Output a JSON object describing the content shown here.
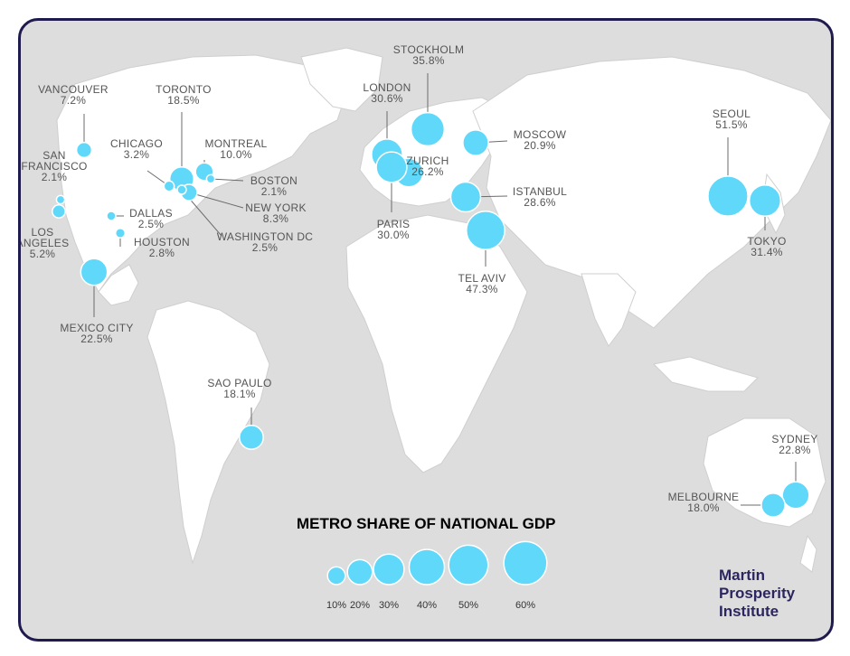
{
  "legend": {
    "title": "METRO SHARE OF NATIONAL GDP",
    "items": [
      {
        "label": "10%",
        "value": 10
      },
      {
        "label": "20%",
        "value": 20
      },
      {
        "label": "30%",
        "value": 30
      },
      {
        "label": "40%",
        "value": 40
      },
      {
        "label": "50%",
        "value": 50
      },
      {
        "label": "60%",
        "value": 60
      }
    ]
  },
  "brand": {
    "line1": "Martin",
    "line2": "Prosperity",
    "line3": "Institute"
  },
  "colors": {
    "bubble": "#5fd8fa",
    "frame": "#1f1b4f",
    "land": "#ffffff",
    "sea": "#dddddd",
    "brand": "#2b2660"
  },
  "cities": [
    {
      "name": "VANCOUVER",
      "value": "7.2%",
      "share": 7.2
    },
    {
      "name": "TORONTO",
      "value": "18.5%",
      "share": 18.5
    },
    {
      "name": "CHICAGO",
      "value": "3.2%",
      "share": 3.2
    },
    {
      "name": "MONTREAL",
      "value": "10.0%",
      "share": 10.0
    },
    {
      "name": "SAN FRANCISCO",
      "value": "2.1%",
      "share": 2.1
    },
    {
      "name": "BOSTON",
      "value": "2.1%",
      "share": 2.1
    },
    {
      "name": "NEW YORK",
      "value": "8.3%",
      "share": 8.3
    },
    {
      "name": "WASHINGTON DC",
      "value": "2.5%",
      "share": 2.5
    },
    {
      "name": "DALLAS",
      "value": "2.5%",
      "share": 2.5
    },
    {
      "name": "HOUSTON",
      "value": "2.8%",
      "share": 2.8
    },
    {
      "name": "LOS ANGELES",
      "value": "5.2%",
      "share": 5.2
    },
    {
      "name": "MEXICO CITY",
      "value": "22.5%",
      "share": 22.5
    },
    {
      "name": "SAO PAULO",
      "value": "18.1%",
      "share": 18.1
    },
    {
      "name": "STOCKHOLM",
      "value": "35.8%",
      "share": 35.8
    },
    {
      "name": "LONDON",
      "value": "30.6%",
      "share": 30.6
    },
    {
      "name": "MOSCOW",
      "value": "20.9%",
      "share": 20.9
    },
    {
      "name": "ZURICH",
      "value": "26.2%",
      "share": 26.2
    },
    {
      "name": "ISTANBUL",
      "value": "28.6%",
      "share": 28.6
    },
    {
      "name": "PARIS",
      "value": "30.0%",
      "share": 30.0
    },
    {
      "name": "TEL AVIV",
      "value": "47.3%",
      "share": 47.3
    },
    {
      "name": "SEOUL",
      "value": "51.5%",
      "share": 51.5
    },
    {
      "name": "TOKYO",
      "value": "31.4%",
      "share": 31.4
    },
    {
      "name": "SYDNEY",
      "value": "22.8%",
      "share": 22.8
    },
    {
      "name": "MELBOURNE",
      "value": "18.0%",
      "share": 18.0
    }
  ]
}
